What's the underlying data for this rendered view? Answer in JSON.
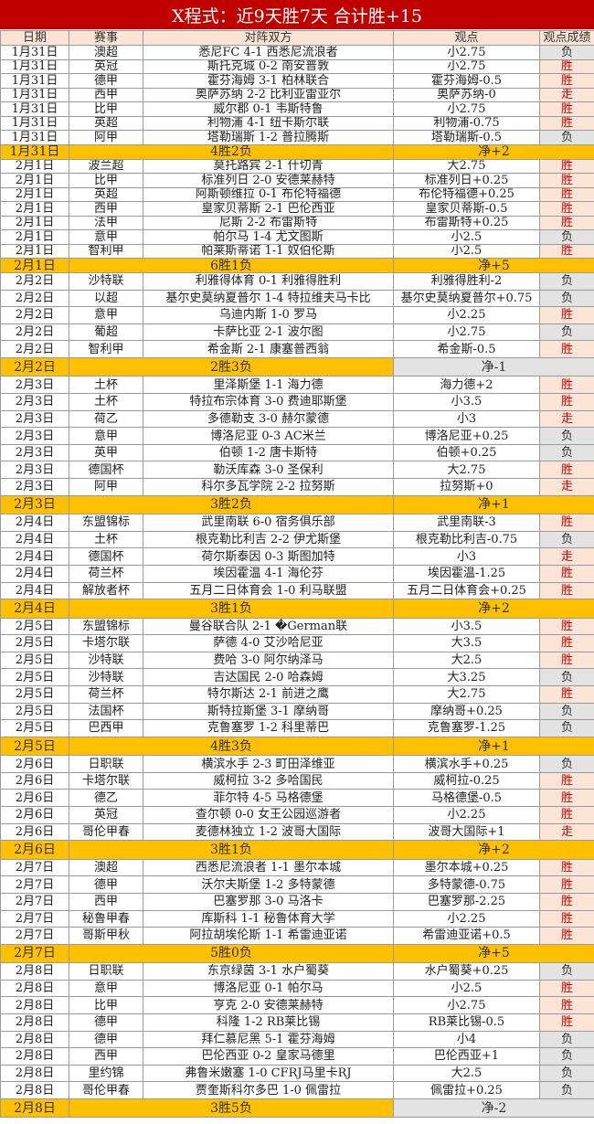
{
  "title": "X程式：近9天胜7天  合计胜+15",
  "headers": [
    "日期",
    "赛事",
    "对阵双方",
    "观点",
    "观点成绩"
  ],
  "colors": {
    "title_bg": "#c00000",
    "header_bg": "#fbe4d5",
    "summary_bg": "#ffc000",
    "win_bg": "#fce4d6",
    "loss_bg": "#e3e3e3",
    "win_text": "#e00000"
  },
  "groups": [
    {
      "rows": [
        [
          "1月31日",
          "澳超",
          "悉尼FC 4-1 西悉尼流浪者",
          "小2.75",
          "负"
        ],
        [
          "1月31日",
          "英冠",
          "斯托克城 0-2 南安普敦",
          "小2.75",
          "胜"
        ],
        [
          "1月31日",
          "德甲",
          "霍芬海姆 3-1 柏林联合",
          "霍芬海姆-0.5",
          "胜"
        ],
        [
          "1月31日",
          "西甲",
          "奥萨苏纳 2-2 比利亚雷亚尔",
          "奥萨苏纳-0",
          "走"
        ],
        [
          "1月31日",
          "比甲",
          "威尔郡 0-1 韦斯特鲁",
          "小2.75",
          "胜"
        ],
        [
          "1月31日",
          "英超",
          "利物浦 4-1 纽卡斯尔联",
          "利物浦-0.75",
          "胜"
        ],
        [
          "1月31日",
          "阿甲",
          "塔勒瑞斯 1-2 普拉腾斯",
          "塔勒瑞斯-0.5",
          "负"
        ]
      ],
      "summary": {
        "date": "1月31日",
        "record": "4胜2负",
        "net": "净+2"
      }
    },
    {
      "rows": [
        [
          "2月1日",
          "波兰超",
          "莫托路宾 2-1 什切青",
          "大2.75",
          "胜"
        ],
        [
          "2月1日",
          "比甲",
          "标准列日 2-0 安德莱赫特",
          "标准列日+0.25",
          "胜"
        ],
        [
          "2月1日",
          "英超",
          "阿斯顿维拉 0-1 布伦特福德",
          "布伦特福德+0.25",
          "胜"
        ],
        [
          "2月1日",
          "西甲",
          "皇家贝蒂斯 2-1 巴伦西亚",
          "皇家贝蒂斯-0.5",
          "胜"
        ],
        [
          "2月1日",
          "法甲",
          "尼斯 2-2 布雷斯特",
          "布雷斯特+0.25",
          "胜"
        ],
        [
          "2月1日",
          "意甲",
          "帕尔马 1-4 尤文图斯",
          "小2.5",
          "负"
        ],
        [
          "2月1日",
          "智利甲",
          "帕莱斯蒂诺 1-1 奴伯伦斯",
          "小2.5",
          "胜"
        ]
      ],
      "summary": {
        "date": "2月1日",
        "record": "6胜1负",
        "net": "净+5"
      }
    },
    {
      "rows": [
        [
          "2月2日",
          "沙特联",
          "利雅得体育 0-1 利雅得胜利",
          "利雅得胜利-2",
          "负"
        ],
        [
          "2月2日",
          "以超",
          "基尔史莫纳夏普尔 1-4 特拉维夫马卡比",
          "基尔史莫纳夏普尔+0.75",
          "负"
        ],
        [
          "2月2日",
          "意甲",
          "乌迪内斯 1-0 罗马",
          "小2.25",
          "胜"
        ],
        [
          "2月2日",
          "葡超",
          "卡萨比亚 2-1 波尔图",
          "小2.75",
          "负"
        ],
        [
          "2月2日",
          "智利甲",
          "希金斯 2-1 康塞普西翁",
          "希金斯-0.5",
          "胜"
        ]
      ],
      "summary": {
        "date": "2月2日",
        "record": "2胜3负",
        "net": "净-1"
      }
    },
    {
      "rows": [
        [
          "2月3日",
          "土杯",
          "里泽斯堡 1-1 海力德",
          "海力德+2",
          "胜"
        ],
        [
          "2月3日",
          "土杯",
          "特拉布宗体育 3-0 费迪耶斯堡",
          "小3.5",
          "胜"
        ],
        [
          "2月3日",
          "荷乙",
          "多德勒支 3-0 赫尔蒙德",
          "小3",
          "走"
        ],
        [
          "2月3日",
          "意甲",
          "博洛尼亚 0-3 AC米兰",
          "博洛尼亚+0.25",
          "负"
        ],
        [
          "2月3日",
          "英甲",
          "伯顿 1-2 唐卡斯特",
          "伯顿+0.25",
          "负"
        ],
        [
          "2月3日",
          "德国杯",
          "勒沃库森 3-0 圣保利",
          "大2.75",
          "胜"
        ],
        [
          "2月3日",
          "阿甲",
          "科尔多瓦学院 2-2 拉努斯",
          "拉努斯+0",
          "走"
        ]
      ],
      "summary": {
        "date": "2月3日",
        "record": "3胜2负",
        "net": "净+1"
      }
    },
    {
      "rows": [
        [
          "2月4日",
          "东盟锦标",
          "武里南联 6-0 宿务俱乐部",
          "武里南联-3",
          "胜"
        ],
        [
          "2月4日",
          "土杯",
          "根克勒比利吉 2-2 伊尤斯堡",
          "根克勒比利吉-0.75",
          "负"
        ],
        [
          "2月4日",
          "德国杯",
          "荷尔斯泰因 0-3 斯图加特",
          "小3",
          "走"
        ],
        [
          "2月4日",
          "荷兰杯",
          "埃因霍温 4-1 海伦芬",
          "埃因霍温-1.25",
          "胜"
        ],
        [
          "2月4日",
          "解放者杯",
          "五月二日体育会 1-0 利马联盟",
          "五月二日体育会+0.25",
          "胜"
        ]
      ],
      "summary": {
        "date": "2月4日",
        "record": "3胜1负",
        "net": "净+2"
      }
    },
    {
      "rows": [
        [
          "2月5日",
          "东盟锦标",
          "曼谷联合队 2-1 �German联",
          "小3.5",
          "胜"
        ],
        [
          "2月5日",
          "卡塔尔联",
          "萨德 4-0 艾沙哈尼亚",
          "大3.5",
          "胜"
        ],
        [
          "2月5日",
          "沙特联",
          "费哈 3-0 阿尔纳泽马",
          "大2.5",
          "胜"
        ],
        [
          "2月5日",
          "沙特联",
          "吉达国民 2-0 哈森姆",
          "大3.25",
          "负"
        ],
        [
          "2月5日",
          "荷兰杯",
          "特尔斯达 2-1 前进之鹰",
          "大2.75",
          "胜"
        ],
        [
          "2月5日",
          "法国杯",
          "斯特拉斯堡 3-1 摩纳哥",
          "摩纳哥+0.25",
          "负"
        ],
        [
          "2月5日",
          "巴西甲",
          "克鲁塞罗 1-2 科里蒂巴",
          "克鲁塞罗-1.25",
          "负"
        ]
      ],
      "summary": {
        "date": "2月5日",
        "record": "4胜3负",
        "net": "净+1"
      }
    },
    {
      "rows": [
        [
          "2月6日",
          "日职联",
          "横滨水手 2-3 町田泽维亚",
          "横滨水手+0.25",
          "负"
        ],
        [
          "2月6日",
          "卡塔尔联",
          "威柯拉 3-2 多哈国民",
          "威柯拉-0.25",
          "胜"
        ],
        [
          "2月6日",
          "德乙",
          "菲尔特 4-5 马格德堡",
          "马格德堡-0.5",
          "胜"
        ],
        [
          "2月6日",
          "英冠",
          "查尔顿 0-0 女王公园巡游者",
          "小2.25",
          "胜"
        ],
        [
          "2月6日",
          "哥伦甲春",
          "麦德林独立 1-2 波哥大国际",
          "波哥大国际+1",
          "走"
        ]
      ],
      "summary": {
        "date": "2月6日",
        "record": "3胜1负",
        "net": "净+2"
      }
    },
    {
      "rows": [
        [
          "2月7日",
          "澳超",
          "西悉尼流浪者 1-1 墨尔本城",
          "墨尔本城+0.25",
          "胜"
        ],
        [
          "2月7日",
          "德甲",
          "沃尔夫斯堡 1-2 多特蒙德",
          "多特蒙德-0.75",
          "胜"
        ],
        [
          "2月7日",
          "西甲",
          "巴塞罗那 3-0 马洛卡",
          "巴塞罗那-2.25",
          "胜"
        ],
        [
          "2月7日",
          "秘鲁甲春",
          "库斯科 1-1 秘鲁体育大学",
          "小2.25",
          "胜"
        ],
        [
          "2月7日",
          "哥斯甲秋",
          "阿拉胡埃伦斯 1-1 希雷迪亚诺",
          "希雷迪亚诺+0.5",
          "胜"
        ]
      ],
      "summary": {
        "date": "2月7日",
        "record": "5胜0负",
        "net": "净+5"
      }
    },
    {
      "rows": [
        [
          "2月8日",
          "日职联",
          "东京绿茵 3-1 水户蜀葵",
          "水户蜀葵+0.25",
          "负"
        ],
        [
          "2月8日",
          "意甲",
          "博洛尼亚 0-1 帕尔马",
          "小2.5",
          "胜"
        ],
        [
          "2月8日",
          "比甲",
          "亨克 2-0 安德莱赫特",
          "小2.75",
          "胜"
        ],
        [
          "2月8日",
          "德甲",
          "科隆 1-2 RB莱比锡",
          "RB莱比锡-0.5",
          "胜"
        ],
        [
          "2月8日",
          "德甲",
          "拜仁慕尼黑 5-1 霍芬海姆",
          "小4",
          "负"
        ],
        [
          "2月8日",
          "西甲",
          "巴伦西亚 0-2 皇家马德里",
          "巴伦西亚+1",
          "负"
        ],
        [
          "2月8日",
          "里约锦",
          "弗鲁米嫩塞 1-0 CFRJ马里卡RJ",
          "大2.5",
          "负"
        ],
        [
          "2月8日",
          "哥伦甲春",
          "贾奎斯科尔多巴 1-0 佩雷拉",
          "佩雷拉+0.25",
          "负"
        ]
      ],
      "summary": {
        "date": "2月8日",
        "record": "3胜5负",
        "net": "净-2"
      }
    }
  ]
}
